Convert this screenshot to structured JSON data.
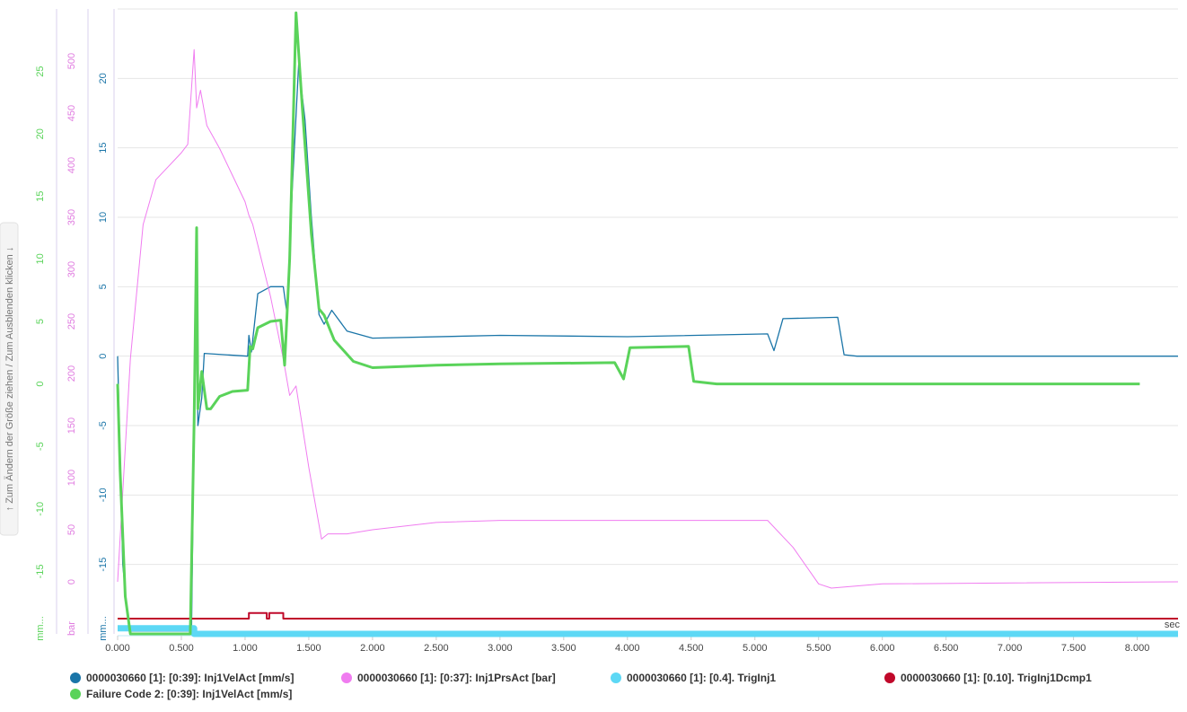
{
  "sidebar_hint": "↑ Zum Ändern der Größe ziehen / Zum Ausblenden klicken ↓",
  "chart_data": {
    "type": "line",
    "xlabel": "sec",
    "xlim": [
      0,
      8.32
    ],
    "xticks": [
      {
        "value": 0,
        "label": "0.000"
      },
      {
        "value": 0.5,
        "label": "0.500"
      },
      {
        "value": 1,
        "label": "1.000"
      },
      {
        "value": 1.5,
        "label": "1.500"
      },
      {
        "value": 2,
        "label": "2.000"
      },
      {
        "value": 2.5,
        "label": "2.500"
      },
      {
        "value": 3,
        "label": "3.000"
      },
      {
        "value": 3.5,
        "label": "3.500"
      },
      {
        "value": 4,
        "label": "4.000"
      },
      {
        "value": 4.5,
        "label": "4.500"
      },
      {
        "value": 5,
        "label": "5.000"
      },
      {
        "value": 5.5,
        "label": "5.500"
      },
      {
        "value": 6,
        "label": "6.000"
      },
      {
        "value": 6.5,
        "label": "6.500"
      },
      {
        "value": 7,
        "label": "7.000"
      },
      {
        "value": 7.5,
        "label": "7.500"
      },
      {
        "value": 8,
        "label": "8.000"
      }
    ],
    "ylabel": "mm...",
    "ylim": [
      -20,
      25
    ],
    "yticks": [
      -15,
      -10,
      -5,
      0,
      5,
      10,
      15,
      20
    ],
    "ycolor": "#1a75a8",
    "y2label": "bar",
    "y2lim": [
      -50,
      550
    ],
    "y2ticks": [
      0,
      50,
      100,
      150,
      200,
      250,
      300,
      350,
      400,
      450,
      500
    ],
    "y2color": "#e07ce0",
    "y3label": "mm...",
    "y3lim": [
      -20,
      30
    ],
    "y3ticks": [
      -15,
      -10,
      -5,
      0,
      5,
      10,
      15,
      20,
      25
    ],
    "y3color": "#5ad35a",
    "grid": true,
    "series": [
      {
        "name": "0000030660 [1]: [0:39]: Inj1VelAct [mm/s]",
        "color": "#1a75a8",
        "axis": "y",
        "width": 1.3,
        "x": [
          0,
          0.04,
          0.09,
          0.58,
          0.6,
          0.62,
          0.63,
          0.66,
          0.68,
          1.02,
          1.03,
          1.05,
          1.1,
          1.2,
          1.3,
          1.33,
          1.37,
          1.42,
          1.47,
          1.52,
          1.58,
          1.62,
          1.68,
          1.8,
          2.0,
          3.0,
          4.0,
          5.1,
          5.15,
          5.22,
          5.65,
          5.7,
          5.8,
          8.32
        ],
        "values": [
          0,
          -15,
          -19.8,
          -19.8,
          -5,
          3.5,
          -5,
          -3,
          0.2,
          0,
          1.5,
          0.3,
          4.5,
          5,
          5,
          3,
          12,
          21,
          17,
          10,
          3,
          2.3,
          3.3,
          1.8,
          1.3,
          1.5,
          1.4,
          1.6,
          0.4,
          2.7,
          2.8,
          0.1,
          0,
          0
        ]
      },
      {
        "name": "0000030660 [1]: [0:37]: Inj1PrsAct [bar]",
        "color": "#f07cf0",
        "axis": "y2",
        "width": 1,
        "x": [
          0,
          0.1,
          0.2,
          0.3,
          0.5,
          0.55,
          0.6,
          0.62,
          0.65,
          0.7,
          0.8,
          1.0,
          1.03,
          1.06,
          1.2,
          1.3,
          1.35,
          1.4,
          1.5,
          1.6,
          1.65,
          1.8,
          2.0,
          2.5,
          3.0,
          5.1,
          5.3,
          5.5,
          5.6,
          6.0,
          8.32
        ],
        "values": [
          0,
          214,
          343,
          386,
          412,
          420,
          511,
          455,
          472,
          438,
          416,
          365,
          352,
          343,
          274,
          214,
          179,
          188,
          110,
          41,
          46,
          46,
          50,
          57,
          59,
          59,
          33,
          -2,
          -6,
          -2,
          0
        ]
      },
      {
        "name": "0000030660 [1]: [0.4]. TrigInj1",
        "color": "#5dd8f5",
        "axis": "y",
        "width": 7,
        "x": [
          0,
          0.6,
          0.6,
          8.32
        ],
        "values": [
          -19.6,
          -19.6,
          -20,
          -20
        ]
      },
      {
        "name": "0000030660 [1]: [0.10]. TrigInj1Dcmp1",
        "color": "#c0082a",
        "axis": "y",
        "width": 2,
        "x": [
          0,
          1.03,
          1.03,
          1.17,
          1.17,
          1.19,
          1.19,
          1.3,
          1.3,
          8.32
        ],
        "values": [
          -18.9,
          -18.9,
          -18.5,
          -18.5,
          -18.9,
          -18.9,
          -18.5,
          -18.5,
          -18.9,
          -18.9
        ]
      },
      {
        "name": "Failure Code 2: [0:39]: Inj1VelAct [mm/s]",
        "color": "#5ad35a",
        "axis": "y3",
        "width": 3,
        "x": [
          0,
          0.02,
          0.06,
          0.1,
          0.57,
          0.6,
          0.62,
          0.63,
          0.66,
          0.7,
          0.73,
          0.8,
          0.9,
          1.02,
          1.04,
          1.06,
          1.1,
          1.2,
          1.28,
          1.31,
          1.35,
          1.4,
          1.45,
          1.52,
          1.58,
          1.62,
          1.7,
          1.85,
          2.0,
          2.5,
          3.0,
          3.9,
          3.97,
          4.02,
          4.48,
          4.52,
          4.7,
          8.02
        ],
        "values": [
          0,
          -7,
          -17,
          -20,
          -20,
          -3,
          12.5,
          -2,
          1,
          -2,
          -2,
          -1,
          -0.6,
          -0.5,
          3,
          2.8,
          4.5,
          5,
          5.1,
          1.5,
          10,
          29.7,
          22,
          12,
          6,
          5.5,
          3.5,
          1.8,
          1.3,
          1.5,
          1.6,
          1.7,
          0.4,
          2.9,
          3,
          0.2,
          0,
          0
        ]
      }
    ]
  }
}
